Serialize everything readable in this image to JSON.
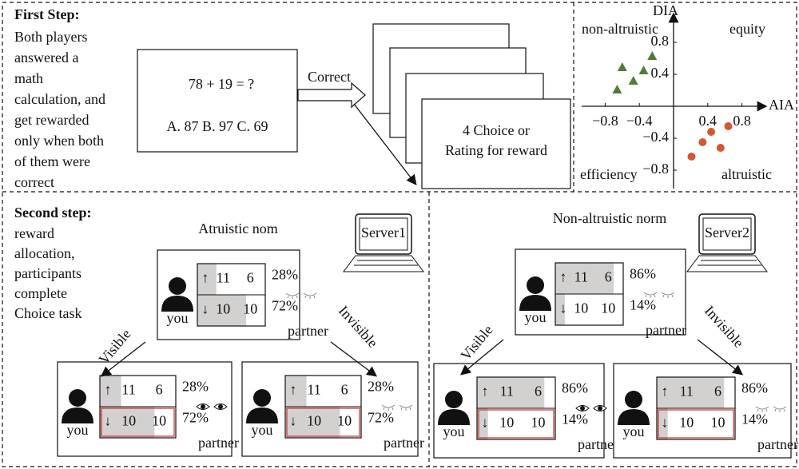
{
  "first_step": {
    "heading": "First Step:",
    "lines": [
      "Both players",
      "answered a",
      "math",
      "calculation, and",
      "get rewarded",
      "only when both",
      "of them were",
      "correct"
    ]
  },
  "question": {
    "equation": "78 + 19 = ?",
    "options": "A. 87   B. 97   C. 69"
  },
  "arrow_label": "Correct",
  "card": [
    "4 Choice or",
    "Rating for reward"
  ],
  "quadrant": {
    "x_label": "AIA",
    "y_label": "DIA",
    "regions": [
      "non-altruistic",
      "equity",
      "efficiency",
      "altruistic"
    ],
    "xlim": [
      -1,
      1
    ],
    "ylim": [
      -1,
      1
    ],
    "xticks": [
      {
        "value": -0.8,
        "label": "−0.8"
      },
      {
        "value": -0.4,
        "label": "−0.4"
      },
      0.4,
      0.8
    ],
    "yticks": [
      0.8,
      0.4,
      {
        "value": -0.4,
        "label": "−0.4"
      },
      {
        "value": -0.8,
        "label": "−0.8"
      }
    ],
    "triangles": {
      "color": "#4f7d36",
      "x": [
        -0.66,
        -0.6,
        -0.47,
        -0.35,
        -0.25
      ],
      "y": [
        0.21,
        0.49,
        0.32,
        0.45,
        0.63
      ]
    },
    "circles": {
      "color": "#d4582f",
      "x": [
        0.21,
        0.34,
        0.44,
        0.55,
        0.64
      ],
      "y": [
        -0.63,
        -0.45,
        -0.32,
        -0.52,
        -0.25
      ]
    }
  },
  "second_step": {
    "heading": "Second step:",
    "lines": [
      "reward",
      "allocation,",
      "participants",
      "complete",
      "Choice task"
    ]
  },
  "labels": {
    "you": "you",
    "partner": "partner",
    "visible": "Visible",
    "invisible": "Invisible"
  },
  "norms": [
    {
      "title": "Atruistic nom",
      "server": "Server1",
      "server_color": "#d4582f",
      "arrows": [
        "↑",
        "↓"
      ],
      "options": [
        [
          11,
          6
        ],
        [
          10,
          10
        ]
      ],
      "shares": [
        28,
        72
      ],
      "share_labels": [
        "28%",
        "72%"
      ]
    },
    {
      "title": "Non-altruistic norm",
      "server": "Server2",
      "server_color": "#5a8a3a",
      "arrows": [
        "↑",
        "↓"
      ],
      "options": [
        [
          11,
          6
        ],
        [
          10,
          10
        ]
      ],
      "shares": [
        86,
        14
      ],
      "share_labels": [
        "86%",
        "14%"
      ]
    }
  ]
}
